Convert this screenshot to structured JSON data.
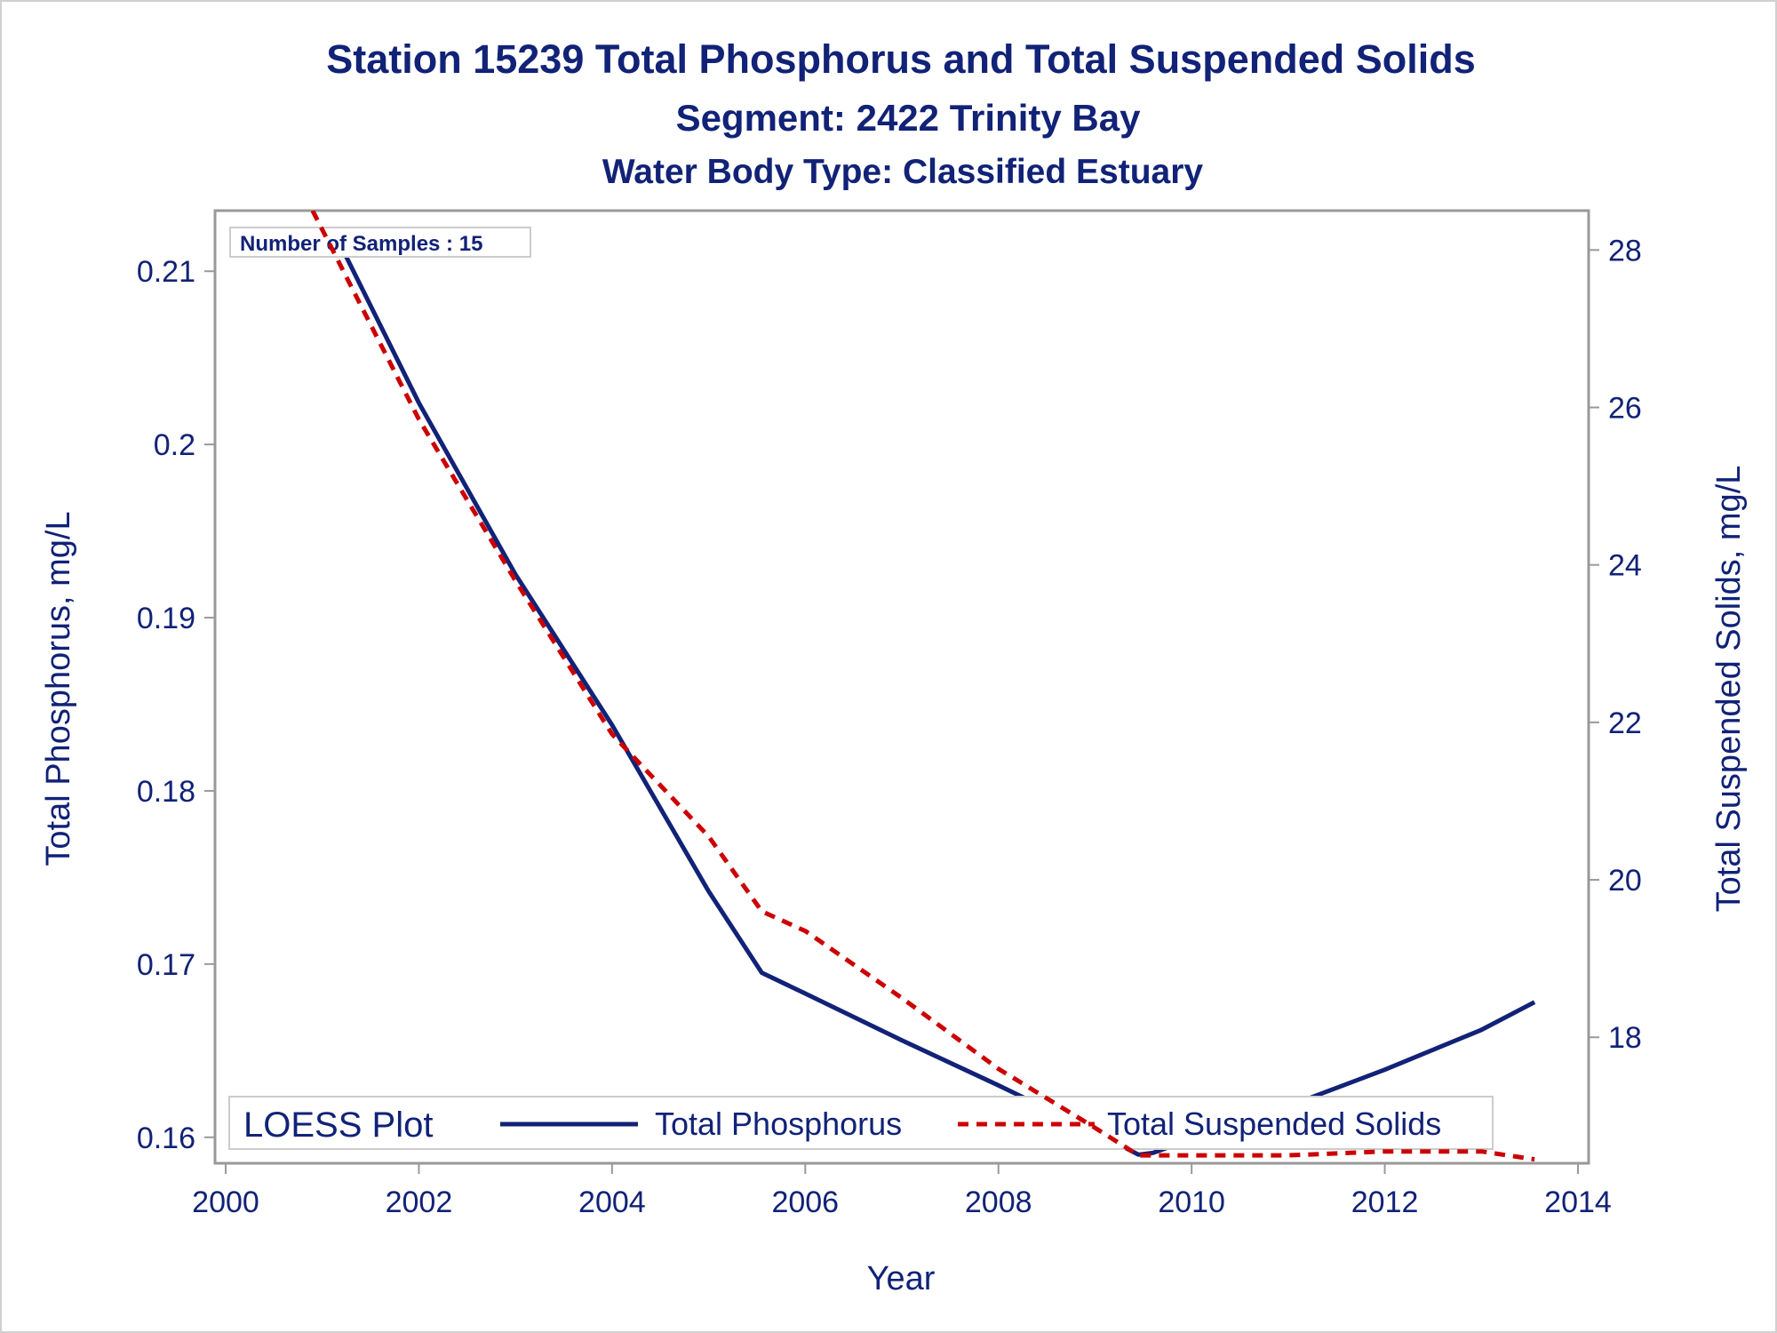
{
  "chart_data": {
    "type": "line",
    "title": "Station 15239  Total Phosphorus and Total Suspended Solids",
    "subtitle": "Segment: 2422  Trinity Bay",
    "subtitle2": "Water Body Type: Classified Estuary",
    "inset_text": "Number of Samples : 15",
    "xlabel": "Year",
    "ylabel": "Total Phosphorus, mg/L",
    "y2label": "Total Suspended Solids, mg/L",
    "xlim": [
      2000,
      2014
    ],
    "ylim": [
      0.1585,
      0.2135
    ],
    "y2lim": [
      16.4,
      28.5
    ],
    "x_ticks": [
      "2000",
      "2002",
      "2004",
      "2006",
      "2008",
      "2010",
      "2012",
      "2014"
    ],
    "y_ticks": [
      "0.16",
      "0.17",
      "0.18",
      "0.19",
      "0.2",
      "0.21"
    ],
    "y2_ticks": [
      "18",
      "20",
      "22",
      "24",
      "26",
      "28"
    ],
    "legend": {
      "title": "LOESS Plot",
      "position": "bottom-inside",
      "entries": [
        "Total Phosphorus",
        "Total Suspended Solids"
      ]
    },
    "series": [
      {
        "name": "Total Phosphorus",
        "axis": "left",
        "color": "#112277",
        "style": "solid",
        "x": [
          2001.1,
          2002.0,
          2003.0,
          2004.0,
          2005.0,
          2005.55,
          2006.0,
          2007.0,
          2008.0,
          2009.0,
          2009.45,
          2009.6,
          2010.0,
          2011.0,
          2012.0,
          2013.0,
          2013.55
        ],
        "y": [
          0.2125,
          0.2024,
          0.1925,
          0.1838,
          0.1742,
          0.1695,
          0.1683,
          0.1656,
          0.163,
          0.1603,
          0.159,
          0.1591,
          0.1599,
          0.1618,
          0.1639,
          0.1662,
          0.1678
        ]
      },
      {
        "name": "Total Suspended Solids",
        "axis": "right",
        "color": "#cc0000",
        "style": "dashed",
        "x": [
          2000.9,
          2002.0,
          2003.0,
          2004.0,
          2005.0,
          2005.55,
          2006.0,
          2007.0,
          2008.0,
          2009.0,
          2009.45,
          2010.0,
          2011.0,
          2012.0,
          2013.0,
          2013.55
        ],
        "y": [
          28.5,
          25.85,
          23.8,
          21.85,
          20.55,
          19.6,
          19.35,
          18.5,
          17.6,
          16.85,
          16.5,
          16.5,
          16.5,
          16.55,
          16.55,
          16.45
        ]
      }
    ]
  }
}
